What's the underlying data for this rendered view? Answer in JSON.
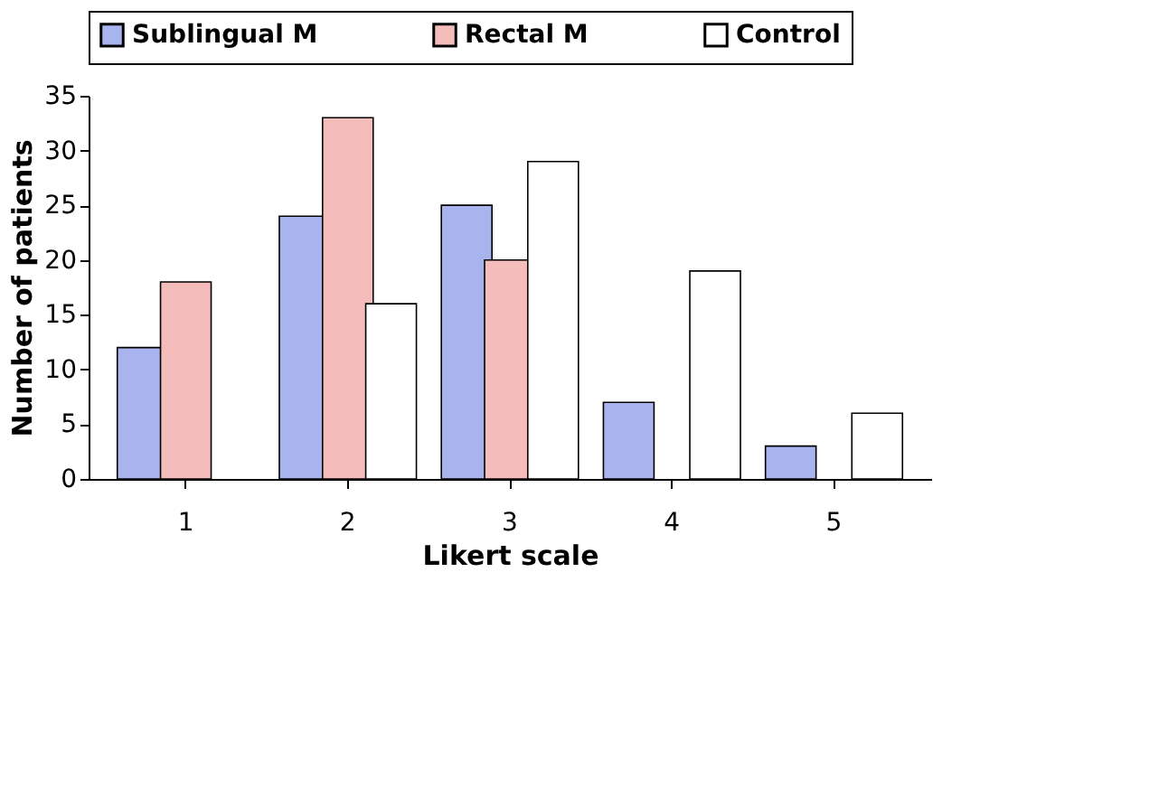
{
  "chart_data": {
    "type": "bar",
    "xlabel": "Likert scale",
    "ylabel": "Number of patients",
    "categories": [
      "1",
      "2",
      "3",
      "4",
      "5"
    ],
    "series": [
      {
        "name": "Sublingual M",
        "color": "#a9b3ee",
        "values": [
          12,
          24,
          25,
          7,
          3
        ]
      },
      {
        "name": "Rectal M",
        "color": "#f5bcbc",
        "values": [
          18,
          33,
          20,
          null,
          null
        ]
      },
      {
        "name": "Control",
        "color": "#ffffff",
        "values": [
          null,
          16,
          29,
          19,
          6
        ]
      }
    ],
    "ylim": [
      0,
      35
    ],
    "yticks": [
      0,
      5,
      10,
      15,
      20,
      25,
      30,
      35
    ],
    "grid": false,
    "legend": "top"
  }
}
